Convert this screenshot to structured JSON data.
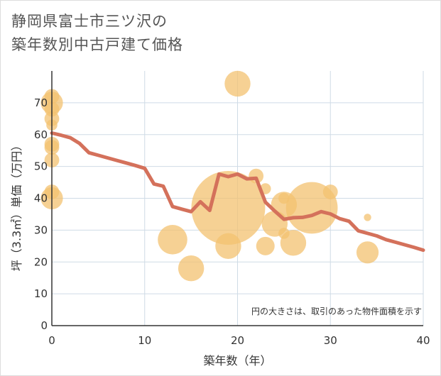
{
  "page": {
    "title_line1": "静岡県富士市三ツ沢の",
    "title_line2": "築年数別中古戸建て価格"
  },
  "colors": {
    "bubble": "#f3c270",
    "line": "#d4715b",
    "grid": "#cfdbe6",
    "axis": "#333333",
    "background": "#ffffff"
  },
  "chart_data": {
    "type": "scatter",
    "title": "静岡県富士市三ツ沢の築年数別中古戸建て価格",
    "xlabel": "築年数（年）",
    "ylabel": "坪（3.3㎡）単価（万円）",
    "xlim": [
      0,
      40
    ],
    "ylim": [
      0,
      80
    ],
    "x_ticks": [
      0,
      10,
      20,
      30,
      40
    ],
    "y_ticks": [
      0,
      10,
      20,
      30,
      40,
      50,
      60,
      70
    ],
    "note": "円の大きさは、取引のあった物件面積を示す",
    "bubbles": [
      {
        "x": 0,
        "y": 72,
        "size": 2
      },
      {
        "x": 0,
        "y": 70,
        "size": 3
      },
      {
        "x": 0,
        "y": 68,
        "size": 2
      },
      {
        "x": 0,
        "y": 65,
        "size": 2
      },
      {
        "x": 0,
        "y": 63,
        "size": 1.5
      },
      {
        "x": 0,
        "y": 57,
        "size": 2
      },
      {
        "x": 0,
        "y": 56,
        "size": 2
      },
      {
        "x": 0,
        "y": 52,
        "size": 2
      },
      {
        "x": 0,
        "y": 42,
        "size": 2
      },
      {
        "x": 0,
        "y": 40,
        "size": 3
      },
      {
        "x": 13,
        "y": 27,
        "size": 4
      },
      {
        "x": 15,
        "y": 18,
        "size": 3.5
      },
      {
        "x": 19,
        "y": 37,
        "size": 10
      },
      {
        "x": 19,
        "y": 25,
        "size": 3.5
      },
      {
        "x": 20,
        "y": 76,
        "size": 3.5
      },
      {
        "x": 22,
        "y": 47,
        "size": 2
      },
      {
        "x": 23,
        "y": 43,
        "size": 1.5
      },
      {
        "x": 23,
        "y": 25,
        "size": 2.5
      },
      {
        "x": 24,
        "y": 32,
        "size": 3.5
      },
      {
        "x": 25,
        "y": 40,
        "size": 1.5
      },
      {
        "x": 25,
        "y": 38,
        "size": 3.5
      },
      {
        "x": 25,
        "y": 29,
        "size": 1.5
      },
      {
        "x": 26,
        "y": 26,
        "size": 3.5
      },
      {
        "x": 28,
        "y": 37,
        "size": 7
      },
      {
        "x": 30,
        "y": 42,
        "size": 2
      },
      {
        "x": 34,
        "y": 34,
        "size": 1
      },
      {
        "x": 34,
        "y": 23,
        "size": 3
      }
    ],
    "trend_line": {
      "x": [
        0,
        1,
        2,
        3,
        4,
        5,
        6,
        7,
        8,
        9,
        10,
        11,
        12,
        13,
        14,
        15,
        16,
        17,
        18,
        19,
        20,
        21,
        22,
        23,
        24,
        25,
        26,
        27,
        28,
        29,
        30,
        31,
        32,
        33,
        34,
        35,
        36,
        37,
        38,
        39,
        40
      ],
      "y": [
        60.5,
        59.8,
        59.0,
        57.2,
        54.3,
        53.5,
        52.7,
        51.9,
        51.1,
        50.3,
        49.4,
        44.5,
        43.8,
        37.4,
        36.6,
        35.8,
        38.9,
        36.2,
        47.6,
        46.8,
        47.6,
        46.1,
        46.3,
        38.8,
        36.0,
        33.4,
        33.9,
        34.0,
        34.6,
        35.8,
        35.1,
        33.6,
        32.8,
        29.8,
        29.0,
        28.2,
        27.0,
        26.2,
        25.4,
        24.6,
        23.7
      ]
    }
  }
}
